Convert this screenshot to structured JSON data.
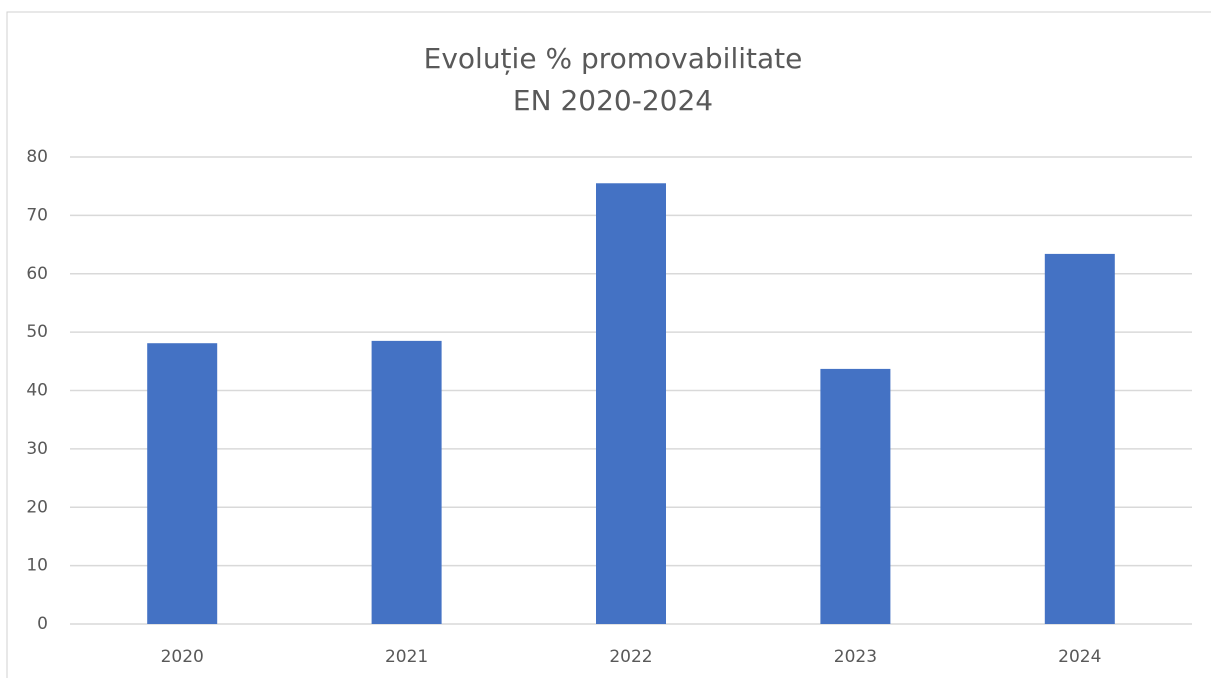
{
  "chart_data": {
    "type": "bar",
    "title": [
      "Evoluție % promovabilitate",
      "EN 2020-2024"
    ],
    "categories": [
      "2020",
      "2021",
      "2022",
      "2023",
      "2024"
    ],
    "values": [
      48.1,
      48.5,
      75.5,
      43.7,
      63.4
    ],
    "color": "#4472c4",
    "ylim": [
      0,
      80
    ],
    "yticks": [
      0,
      10,
      20,
      30,
      40,
      50,
      60,
      70,
      80
    ],
    "grid": true
  }
}
